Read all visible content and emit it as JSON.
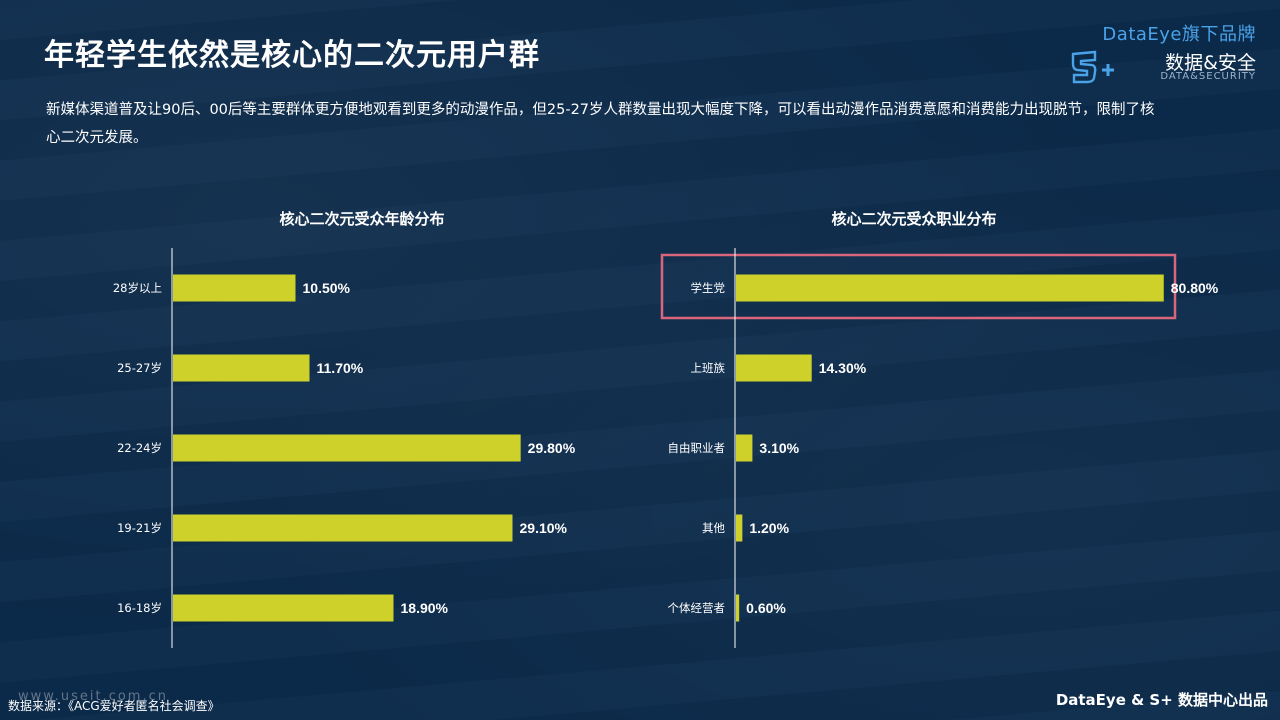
{
  "header": {
    "title": "年轻学生依然是核心的二次元用户群",
    "description": "新媒体渠道普及让90后、00后等主要群体更方便地观看到更多的动漫作品，但25-27岁人群数量出现大幅度下降，可以看出动漫作品消费意愿和消费能力出现脱节，限制了核心二次元发展。"
  },
  "brand": {
    "top_label": "DataEye旗下品牌",
    "cn_label": "数据&安全",
    "en_label": "DATA&SECURITY",
    "logo_icon": "s-plus-shield-logo"
  },
  "colors": {
    "background": "#0b2a4a",
    "bar": "#cdd12a",
    "highlight_box": "#d9667a",
    "axis": "#ffffff"
  },
  "chart_data": [
    {
      "type": "bar",
      "orientation": "horizontal",
      "title": "核心二次元受众年龄分布",
      "categories": [
        "28岁以上",
        "25-27岁",
        "22-24岁",
        "19-21岁",
        "16-18岁"
      ],
      "values": [
        10.5,
        11.7,
        29.8,
        29.1,
        18.9
      ],
      "labels": [
        "10.50%",
        "11.70%",
        "29.80%",
        "29.10%",
        "18.90%"
      ],
      "unit": "%",
      "xlim": [
        0,
        36
      ],
      "grid": false,
      "legend": "none"
    },
    {
      "type": "bar",
      "orientation": "horizontal",
      "title": "核心二次元受众职业分布",
      "categories": [
        "学生党",
        "上班族",
        "自由职业者",
        "其他",
        "个体经营者"
      ],
      "values": [
        80.8,
        14.3,
        3.1,
        1.2,
        0.6
      ],
      "labels": [
        "80.80%",
        "14.30%",
        "3.10%",
        "1.20%",
        "0.60%"
      ],
      "unit": "%",
      "xlim": [
        0,
        85
      ],
      "highlighted_category": "学生党",
      "grid": false,
      "legend": "none"
    }
  ],
  "footer": {
    "source": "数据来源：《ACG爱好者匿名社会调查》",
    "watermark": "www.useit.com.cn",
    "credit": "DataEye & S+ 数据中心出品"
  }
}
